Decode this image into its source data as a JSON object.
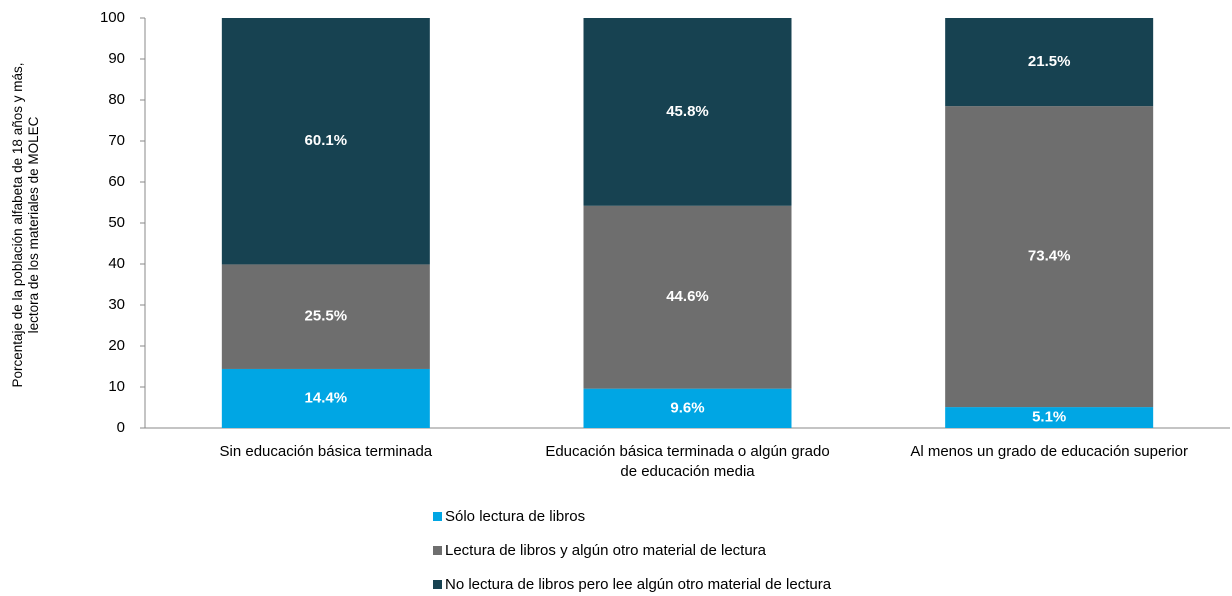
{
  "chart_data": {
    "type": "stacked_bar",
    "y_label": "Porcentaje de la población alfabeta de 18 años y más, lectora de los materiales de MOLEC",
    "categories": [
      "Sin educación básica terminada",
      "Educación básica terminada o algún grado de educación media",
      "Al menos un  grado de educación superior"
    ],
    "series": [
      {
        "name": "Sólo lectura de libros",
        "color": "#00a6e4",
        "values": [
          14.4,
          9.6,
          5.1
        ],
        "value_labels": [
          "14.4%",
          "9.6%",
          "5.1%"
        ]
      },
      {
        "name": "Lectura de libros y algún otro material de lectura",
        "color": "#6e6e6e",
        "values": [
          25.5,
          44.6,
          73.4
        ],
        "value_labels": [
          "25.5%",
          "44.6%",
          "73.4%"
        ]
      },
      {
        "name": "No lectura de libros pero lee algún otro material de lectura",
        "color": "#174251",
        "values": [
          60.1,
          45.8,
          21.5
        ],
        "value_labels": [
          "60.1%",
          "45.8%",
          "21.5%"
        ]
      }
    ],
    "ylim": [
      0,
      100
    ],
    "yticks": [
      0,
      10,
      20,
      30,
      40,
      50,
      60,
      70,
      80,
      90,
      100
    ],
    "grid": false
  }
}
